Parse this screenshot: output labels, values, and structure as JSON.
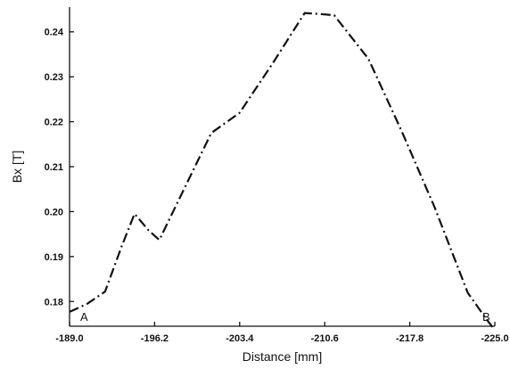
{
  "chart_data": {
    "type": "line",
    "xlabel": "Distance   [mm]",
    "ylabel": "Bx   [T]",
    "xlim": [
      -189.0,
      -225.0
    ],
    "ylim": [
      0.1745,
      0.2455
    ],
    "x_ticks": [
      "-189.0",
      "-196.2",
      "-203.4",
      "-210.6",
      "-217.8",
      "-225.0"
    ],
    "x_tick_values": [
      -189.0,
      -196.2,
      -203.4,
      -210.6,
      -217.8,
      -225.0
    ],
    "y_ticks": [
      "0.18",
      "0.19",
      "0.20",
      "0.21",
      "0.22",
      "0.23",
      "0.24"
    ],
    "y_tick_values": [
      0.18,
      0.19,
      0.2,
      0.21,
      0.22,
      0.23,
      0.24
    ],
    "grid": false,
    "line_style": "dash-dot",
    "annotations": [
      {
        "label": "A",
        "x": -189.0
      },
      {
        "label": "B",
        "x": -225.0
      }
    ],
    "series": [
      {
        "x": [
          -189.0,
          -190.5,
          -192.0,
          -193.4,
          -194.5,
          -195.7,
          -196.6,
          -198.5,
          -201.0,
          -203.4,
          -206.2,
          -208.9,
          -210.1,
          -211.4,
          -214.3,
          -217.1,
          -219.9,
          -222.7,
          -224.3,
          -224.9
        ],
        "y": [
          0.1777,
          0.1795,
          0.1822,
          0.1922,
          0.1995,
          0.1958,
          0.1937,
          0.204,
          0.2175,
          0.222,
          0.233,
          0.2442,
          0.244,
          0.2437,
          0.234,
          0.218,
          0.201,
          0.182,
          0.176,
          0.174
        ]
      }
    ]
  }
}
